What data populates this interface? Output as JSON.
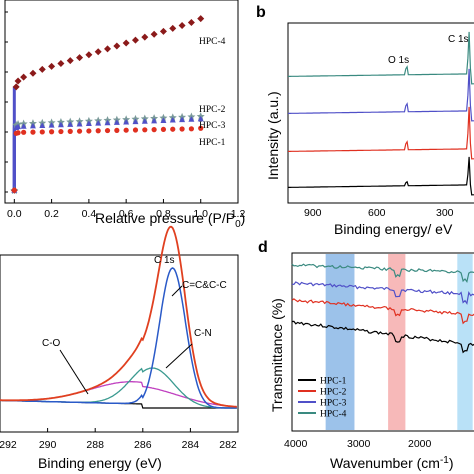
{
  "chart_data": [
    {
      "panel": "a",
      "type": "scatter",
      "xlabel": "Relative pressure (P/P",
      "xlabel_sub": "0",
      "xlabel_tail": ")",
      "xlim": [
        -0.05,
        1.2
      ],
      "ylim": [
        0,
        1
      ],
      "xticks": [
        "0.0",
        "0.2",
        "0.4",
        "0.6",
        "0.8",
        "1.0",
        "1.2"
      ],
      "x": [
        0.0,
        0.01,
        0.02,
        0.05,
        0.1,
        0.15,
        0.2,
        0.25,
        0.3,
        0.35,
        0.4,
        0.45,
        0.5,
        0.55,
        0.6,
        0.65,
        0.7,
        0.75,
        0.8,
        0.85,
        0.9,
        0.95,
        1.0
      ],
      "series": [
        {
          "name": "HPC-4",
          "color": "#8b1a1a",
          "marker": "diamond",
          "values": [
            0.05,
            0.58,
            0.61,
            0.63,
            0.65,
            0.67,
            0.685,
            0.7,
            0.715,
            0.73,
            0.745,
            0.76,
            0.775,
            0.79,
            0.805,
            0.82,
            0.835,
            0.85,
            0.865,
            0.88,
            0.895,
            0.91,
            0.93
          ]
        },
        {
          "name": "HPC-2",
          "color": "#7a9a9a",
          "marker": "star",
          "values": [
            0.05,
            0.385,
            0.39,
            0.392,
            0.394,
            0.396,
            0.398,
            0.4,
            0.402,
            0.404,
            0.406,
            0.408,
            0.41,
            0.412,
            0.414,
            0.416,
            0.418,
            0.42,
            0.422,
            0.424,
            0.426,
            0.428,
            0.43
          ]
        },
        {
          "name": "HPC-3",
          "color": "#5050c8",
          "marker": "triangle",
          "values": [
            0.05,
            0.372,
            0.376,
            0.378,
            0.38,
            0.382,
            0.384,
            0.386,
            0.388,
            0.39,
            0.392,
            0.394,
            0.396,
            0.398,
            0.4,
            0.402,
            0.404,
            0.406,
            0.408,
            0.41,
            0.412,
            0.414,
            0.416
          ]
        },
        {
          "name": "HPC-1",
          "color": "#e03020",
          "marker": "circle",
          "values": [
            0.05,
            0.342,
            0.345,
            0.347,
            0.348,
            0.349,
            0.35,
            0.351,
            0.352,
            0.353,
            0.354,
            0.355,
            0.356,
            0.357,
            0.358,
            0.359,
            0.36,
            0.361,
            0.362,
            0.363,
            0.364,
            0.365,
            0.368
          ]
        }
      ]
    },
    {
      "panel": "b",
      "type": "line",
      "ylabel": "Intensity (a.u.)",
      "xlabel": "Binding energy/ eV",
      "xlim": [
        1000,
        250
      ],
      "xticks": [
        "900",
        "600",
        "300"
      ],
      "peaks": [
        "O 1s",
        "C 1s"
      ],
      "series_colors": [
        "#000000",
        "#e03020",
        "#5050c8",
        "#3a8a80"
      ]
    },
    {
      "panel": "c",
      "type": "line",
      "xlabel": "Binding energy (eV)",
      "xlim": [
        292,
        282
      ],
      "xticks": [
        "292",
        "290",
        "288",
        "286",
        "284",
        "282"
      ],
      "annotations": [
        "C 1s",
        "C=C&C-C",
        "C-O",
        "C-N"
      ]
    },
    {
      "panel": "d",
      "type": "line",
      "ylabel": "Transmittance (%)",
      "xlabel": "Wavenumber (cm",
      "xlabel_sup": "-1",
      "xlabel_tail": ")",
      "xlim": [
        4000,
        1000
      ],
      "xticks": [
        "4000",
        "3000",
        "2000"
      ],
      "legend": [
        "HPC-1",
        "HPC-2",
        "HPC-3",
        "HPC-4"
      ],
      "legend_colors": [
        "#000000",
        "#e03020",
        "#5050c8",
        "#3a8a80"
      ],
      "bands": [
        {
          "from": 3650,
          "to": 3350,
          "color": "#4a90d9"
        },
        {
          "from": 3000,
          "to": 2820,
          "color": "#f08080"
        },
        {
          "from": 2280,
          "to": 2120,
          "color": "#80c8f0"
        },
        {
          "from": 1620,
          "to": 1520,
          "color": "#f0a060"
        }
      ]
    }
  ]
}
